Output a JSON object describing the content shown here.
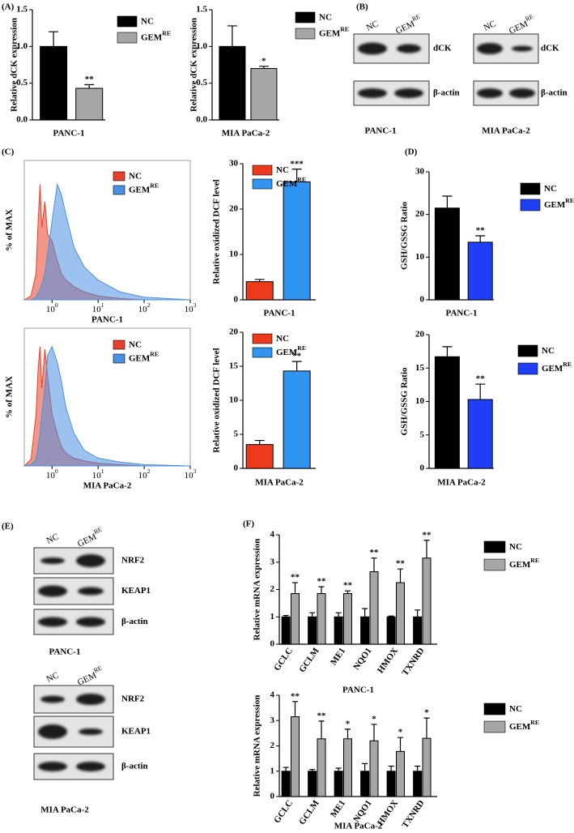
{
  "panel_labels": [
    "(A)",
    "(B)",
    "(C)",
    "(D)",
    "(E)",
    "(F)"
  ],
  "blots": [
    {
      "columns": [
        {
          "text": "NC"
        },
        {
          "text": "GEM",
          "sup": "RE"
        }
      ],
      "rows": [
        "dCK",
        "β-actin"
      ],
      "cell_line": "PANC-1"
    },
    {
      "columns": [
        {
          "text": "NC"
        },
        {
          "text": "GEM",
          "sup": "RE"
        }
      ],
      "rows": [
        "dCK",
        "β-actin"
      ],
      "cell_line": "MIA PaCa-2"
    },
    {
      "columns": [
        {
          "text": "NC"
        },
        {
          "text": "GEM",
          "sup": "RE"
        }
      ],
      "rows": [
        "NRF2",
        "KEAP1",
        "β-actin"
      ],
      "cell_line": "PANC-1"
    },
    {
      "columns": [
        {
          "text": "NC"
        },
        {
          "text": "GEM",
          "sup": "RE"
        }
      ],
      "rows": [
        "NRF2",
        "KEAP1",
        "β-actin"
      ],
      "cell_line": "MIA PaCa-2"
    }
  ],
  "chart_data": [
    {
      "type": "bar",
      "ylabel": "Relative dCK expression",
      "xlabel": "PANC-1",
      "ylim": [
        0,
        1.5
      ],
      "yticks": [
        {
          "value": 0,
          "label": "0.0"
        },
        {
          "value": 0.5,
          "label": "0.5"
        },
        {
          "value": 1,
          "label": "1.0"
        },
        {
          "value": 1.5,
          "label": "1.5"
        }
      ],
      "series": [
        {
          "name": "NC",
          "color": "#000000",
          "values": [
            1.0
          ],
          "errors": [
            0.2
          ]
        },
        {
          "name": "GEM",
          "name_sup": "RE",
          "color": "#a6a6a6",
          "values": [
            0.43
          ],
          "errors": [
            0.05
          ],
          "significance": [
            "**"
          ]
        }
      ]
    },
    {
      "type": "bar",
      "ylabel": "Relative dCK expression",
      "xlabel": "MIA PaCa-2",
      "ylim": [
        0,
        1.5
      ],
      "yticks": [
        {
          "value": 0,
          "label": "0.0"
        },
        {
          "value": 0.5,
          "label": "0.5"
        },
        {
          "value": 1,
          "label": "1.0"
        },
        {
          "value": 1.5,
          "label": "1.5"
        }
      ],
      "series": [
        {
          "name": "NC",
          "color": "#000000",
          "values": [
            1.0
          ],
          "errors": [
            0.28
          ]
        },
        {
          "name": "GEM",
          "name_sup": "RE",
          "color": "#a6a6a6",
          "values": [
            0.7
          ],
          "errors": [
            0.03
          ],
          "significance": [
            "*"
          ]
        }
      ]
    },
    {
      "type": "area",
      "ylabel": "% of MAX",
      "xlabel": "PANC-1",
      "log_x": true,
      "xlim": [
        0.25,
        1000
      ],
      "ylim": [
        0,
        100
      ],
      "xticks": [
        {
          "value": 1,
          "label": "10",
          "sup": "0"
        },
        {
          "value": 10,
          "label": "10",
          "sup": "1"
        },
        {
          "value": 100,
          "label": "10",
          "sup": "2"
        },
        {
          "value": 1000,
          "label": "10",
          "sup": "3"
        }
      ],
      "x": [
        0.25,
        0.35,
        0.45,
        0.5,
        0.55,
        0.6,
        0.7,
        0.8,
        1,
        1.3,
        1.6,
        2,
        3,
        5,
        10,
        30,
        100,
        1000
      ],
      "series": [
        {
          "name": "NC",
          "color": "#e8402a",
          "values": [
            0,
            3,
            20,
            60,
            88,
            55,
            75,
            50,
            45,
            30,
            20,
            15,
            10,
            6,
            3,
            1,
            0,
            0
          ]
        },
        {
          "name": "GEM",
          "name_sup": "RE",
          "color": "#4a90e2",
          "values": [
            0,
            0,
            2,
            5,
            8,
            12,
            20,
            35,
            60,
            88,
            80,
            65,
            40,
            25,
            15,
            6,
            2,
            0
          ]
        }
      ]
    },
    {
      "type": "area",
      "ylabel": "% of MAX",
      "xlabel": "MIA PaCa-2",
      "log_x": true,
      "xlim": [
        0.25,
        1000
      ],
      "ylim": [
        0,
        100
      ],
      "xticks": [
        {
          "value": 1,
          "label": "10",
          "sup": "0"
        },
        {
          "value": 10,
          "label": "10",
          "sup": "1"
        },
        {
          "value": 100,
          "label": "10",
          "sup": "2"
        },
        {
          "value": 1000,
          "label": "10",
          "sup": "3"
        }
      ],
      "x": [
        0.25,
        0.35,
        0.45,
        0.5,
        0.55,
        0.6,
        0.7,
        0.8,
        1,
        1.3,
        1.6,
        2,
        3,
        5,
        10,
        30,
        100,
        1000
      ],
      "series": [
        {
          "name": "NC",
          "color": "#e8402a",
          "values": [
            0,
            5,
            40,
            75,
            92,
            60,
            90,
            70,
            40,
            25,
            15,
            10,
            6,
            4,
            2,
            1,
            0,
            0
          ]
        },
        {
          "name": "GEM",
          "name_sup": "RE",
          "color": "#4a90e2",
          "values": [
            0,
            1,
            5,
            15,
            25,
            40,
            60,
            85,
            92,
            80,
            65,
            45,
            25,
            12,
            6,
            3,
            1,
            0
          ]
        }
      ]
    },
    {
      "type": "bar",
      "ylabel": "Relative oxidized DCF level",
      "xlabel": "PANC-1",
      "ylim": [
        0,
        30
      ],
      "yticks": [
        0,
        10,
        20,
        30
      ],
      "series": [
        {
          "name": "NC",
          "color": "#ee3a1c",
          "values": [
            4.0
          ],
          "errors": [
            0.5
          ]
        },
        {
          "name": "GEM",
          "name_sup": "RE",
          "color": "#2f95f0",
          "values": [
            26
          ],
          "errors": [
            2.8
          ],
          "significance": [
            "***"
          ]
        }
      ]
    },
    {
      "type": "bar",
      "ylabel": "Relative oxidized DCF level",
      "xlabel": "MIA PaCa-2",
      "ylim": [
        0,
        20
      ],
      "yticks": [
        0,
        5,
        10,
        15,
        20
      ],
      "series": [
        {
          "name": "NC",
          "color": "#ee3a1c",
          "values": [
            3.5
          ],
          "errors": [
            0.6
          ]
        },
        {
          "name": "GEM",
          "name_sup": "RE",
          "color": "#2f95f0",
          "values": [
            14.3
          ],
          "errors": [
            1.4
          ],
          "significance": [
            "**"
          ]
        }
      ]
    },
    {
      "type": "bar",
      "ylabel": "GSH/GSSG Ratio",
      "xlabel": "PANC-1",
      "ylim": [
        0,
        30
      ],
      "yticks": [
        0,
        10,
        20,
        30
      ],
      "series": [
        {
          "name": "NC",
          "color": "#000000",
          "values": [
            21.5
          ],
          "errors": [
            2.8
          ]
        },
        {
          "name": "GEM",
          "name_sup": "RE",
          "color": "#1f3ff5",
          "values": [
            13.5
          ],
          "errors": [
            1.5
          ],
          "significance": [
            "**"
          ]
        }
      ]
    },
    {
      "type": "bar",
      "ylabel": "GSH/GSSG Ratio",
      "xlabel": "MIA PaCa-2",
      "ylim": [
        0,
        20
      ],
      "yticks": [
        0,
        5,
        10,
        15,
        20
      ],
      "series": [
        {
          "name": "NC",
          "color": "#000000",
          "values": [
            16.7
          ],
          "errors": [
            1.5
          ]
        },
        {
          "name": "GEM",
          "name_sup": "RE",
          "color": "#1f3ff5",
          "values": [
            10.3
          ],
          "errors": [
            2.3
          ],
          "significance": [
            "**"
          ]
        }
      ]
    },
    {
      "type": "bar",
      "ylabel": "Relative mRNA expression",
      "xlabel": "PANC-1",
      "categories": [
        "GCLC",
        "GCLM",
        "ME1",
        "NQO1",
        "HMOX",
        "TXNRD"
      ],
      "ylim": [
        0,
        4
      ],
      "yticks": [
        0,
        1,
        2,
        3,
        4
      ],
      "series": [
        {
          "name": "NC",
          "color": "#000000",
          "values": [
            1,
            1,
            1,
            1,
            1,
            1
          ],
          "errors": [
            0.05,
            0.15,
            0.15,
            0.3,
            0.03,
            0.25
          ]
        },
        {
          "name": "GEM",
          "name_sup": "RE",
          "color": "#a6a6a6",
          "values": [
            1.85,
            1.85,
            1.85,
            2.65,
            2.25,
            3.15
          ],
          "errors": [
            0.4,
            0.25,
            0.1,
            0.5,
            0.5,
            0.65
          ],
          "significance": [
            "**",
            "**",
            "**",
            "**",
            "**",
            "**"
          ]
        }
      ]
    },
    {
      "type": "bar",
      "ylabel": "Relative mRNA expression",
      "xlabel": "MIA PaCa-2",
      "categories": [
        "GCLC",
        "GCLM",
        "ME1",
        "NQO1",
        "HMOX",
        "TXNRD"
      ],
      "ylim": [
        0,
        4
      ],
      "yticks": [
        0,
        1,
        2,
        3,
        4
      ],
      "series": [
        {
          "name": "NC",
          "color": "#000000",
          "values": [
            1,
            1,
            1,
            1,
            1,
            1
          ],
          "errors": [
            0.15,
            0.07,
            0.12,
            0.3,
            0.2,
            0.2
          ]
        },
        {
          "name": "GEM",
          "name_sup": "RE",
          "color": "#a6a6a6",
          "values": [
            3.15,
            2.28,
            2.28,
            2.2,
            1.78,
            2.3
          ],
          "errors": [
            0.6,
            0.7,
            0.38,
            0.65,
            0.55,
            0.8
          ],
          "significance": [
            "**",
            "**",
            "*",
            "*",
            "*",
            "*"
          ]
        }
      ]
    }
  ]
}
